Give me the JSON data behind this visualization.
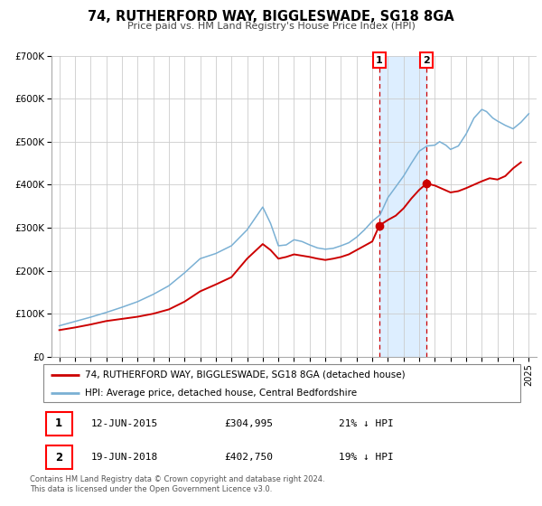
{
  "title": "74, RUTHERFORD WAY, BIGGLESWADE, SG18 8GA",
  "subtitle": "Price paid vs. HM Land Registry's House Price Index (HPI)",
  "legend_label_red": "74, RUTHERFORD WAY, BIGGLESWADE, SG18 8GA (detached house)",
  "legend_label_blue": "HPI: Average price, detached house, Central Bedfordshire",
  "footnote": "Contains HM Land Registry data © Crown copyright and database right 2024.\nThis data is licensed under the Open Government Licence v3.0.",
  "transaction1_date": "12-JUN-2015",
  "transaction1_price": "£304,995",
  "transaction1_hpi": "21% ↓ HPI",
  "transaction1_year": 2015.45,
  "transaction1_value": 304995,
  "transaction2_date": "19-JUN-2018",
  "transaction2_price": "£402,750",
  "transaction2_hpi": "19% ↓ HPI",
  "transaction2_year": 2018.47,
  "transaction2_value": 402750,
  "red_color": "#cc0000",
  "blue_color": "#7ab0d4",
  "shade_color": "#ddeeff",
  "grid_color": "#cccccc",
  "ylim": [
    0,
    700000
  ],
  "yticks": [
    0,
    100000,
    200000,
    300000,
    400000,
    500000,
    600000,
    700000
  ],
  "ytick_labels": [
    "£0",
    "£100K",
    "£200K",
    "£300K",
    "£400K",
    "£500K",
    "£600K",
    "£700K"
  ],
  "xlim_start": 1994.5,
  "xlim_end": 2025.5,
  "hpi_years": [
    1995,
    1996,
    1997,
    1998,
    1999,
    2000,
    2001,
    2002,
    2003,
    2004,
    2005,
    2006,
    2007,
    2008,
    2008.5,
    2009,
    2009.5,
    2010,
    2010.5,
    2011,
    2011.5,
    2012,
    2012.5,
    2013,
    2013.5,
    2014,
    2014.5,
    2015,
    2015.5,
    2016,
    2016.5,
    2017,
    2017.5,
    2018,
    2018.5,
    2019,
    2019.3,
    2019.7,
    2020,
    2020.5,
    2021,
    2021.5,
    2022,
    2022.3,
    2022.7,
    2023,
    2023.5,
    2024,
    2024.5,
    2025
  ],
  "hpi_values": [
    72000,
    82000,
    92000,
    103000,
    115000,
    128000,
    145000,
    165000,
    195000,
    228000,
    240000,
    258000,
    295000,
    348000,
    310000,
    258000,
    260000,
    272000,
    268000,
    260000,
    253000,
    250000,
    252000,
    258000,
    265000,
    278000,
    295000,
    315000,
    330000,
    370000,
    395000,
    420000,
    450000,
    478000,
    490000,
    492000,
    500000,
    492000,
    482000,
    490000,
    518000,
    555000,
    575000,
    570000,
    555000,
    548000,
    538000,
    530000,
    545000,
    565000
  ],
  "red_years": [
    1995.0,
    1996.0,
    1997.0,
    1998.0,
    1999.0,
    2000.0,
    2001.0,
    2002.0,
    2003.0,
    2004.0,
    2005.0,
    2006.0,
    2007.0,
    2008.0,
    2008.5,
    2009.0,
    2009.5,
    2010.0,
    2010.5,
    2011.0,
    2011.5,
    2012.0,
    2012.5,
    2013.0,
    2013.5,
    2014.0,
    2014.5,
    2015.0,
    2015.45,
    2016.0,
    2016.5,
    2017.0,
    2017.5,
    2018.0,
    2018.47,
    2019.0,
    2019.5,
    2020.0,
    2020.5,
    2021.0,
    2021.5,
    2022.0,
    2022.5,
    2023.0,
    2023.5,
    2024.0,
    2024.5
  ],
  "red_values": [
    62000,
    68000,
    75000,
    83000,
    88000,
    93000,
    100000,
    110000,
    128000,
    152000,
    168000,
    185000,
    228000,
    262000,
    248000,
    228000,
    232000,
    238000,
    235000,
    232000,
    228000,
    225000,
    228000,
    232000,
    238000,
    248000,
    258000,
    268000,
    304995,
    318000,
    328000,
    345000,
    368000,
    388000,
    402750,
    398000,
    390000,
    382000,
    385000,
    392000,
    400000,
    408000,
    415000,
    412000,
    420000,
    438000,
    452000
  ]
}
